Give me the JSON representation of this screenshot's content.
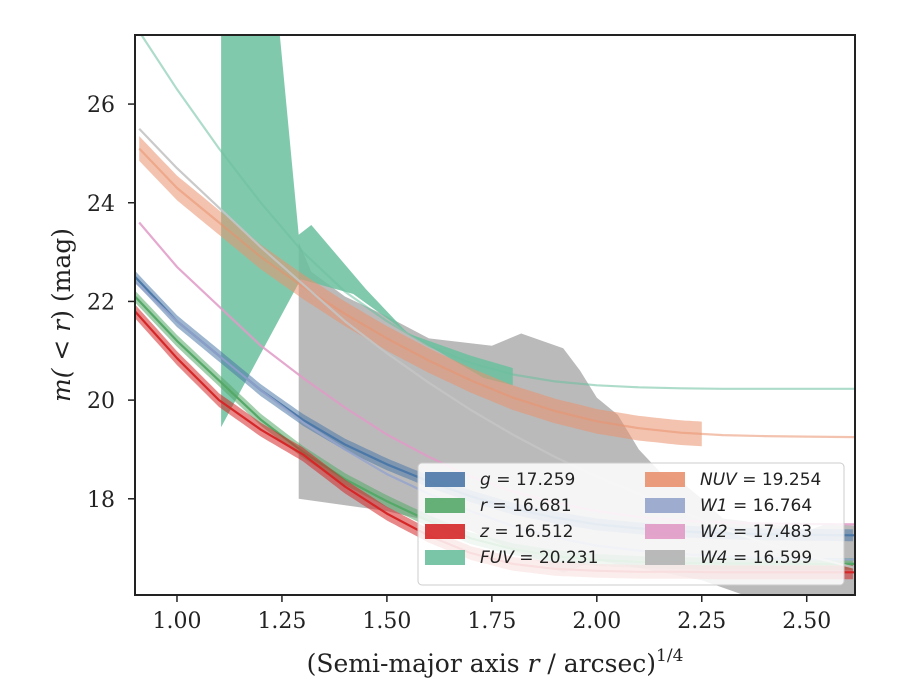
{
  "chart_data": {
    "type": "line",
    "xlabel": "(Semi-major axis r / arcsec)",
    "xlabel_parts": {
      "pre": "(Semi-major axis ",
      "var": "r",
      "post": " / arcsec)",
      "sup": "1/4"
    },
    "ylabel_parts": {
      "pre": "m(",
      "mid": " < ",
      "var": "r",
      "post": ") (mag)"
    },
    "xlim": [
      0.9,
      2.615
    ],
    "ylim": [
      27.4,
      16.05
    ],
    "y_inverted": true,
    "xticks": [
      1.0,
      1.25,
      1.5,
      1.75,
      2.0,
      2.25,
      2.5
    ],
    "xtick_labels": [
      "1.00",
      "1.25",
      "1.50",
      "1.75",
      "2.00",
      "2.25",
      "2.50"
    ],
    "yticks": [
      18,
      20,
      22,
      24,
      26
    ],
    "ytick_labels": [
      "18",
      "20",
      "22",
      "24",
      "26"
    ],
    "grid": false,
    "legend": {
      "placement": "lower-right",
      "columns": 2,
      "entries": [
        {
          "var": "g",
          "eq": " = 17.259",
          "color": "#4c78a8",
          "italic_var": true
        },
        {
          "var": "r",
          "eq": " = 16.681",
          "color": "#55a868",
          "italic_var": true
        },
        {
          "var": "z",
          "eq": " = 16.512",
          "color": "#d62728",
          "italic_var": true
        },
        {
          "var": "FUV",
          "eq": " = 20.231",
          "color": "#6bbf9f",
          "italic_var": true
        },
        {
          "var": "NUV",
          "eq": " = 19.254",
          "color": "#e9916e",
          "italic_var": true
        },
        {
          "var": "W1",
          "eq": " = 16.764",
          "color": "#95a4cc",
          "italic_var": true
        },
        {
          "var": "W2",
          "eq": " = 17.483",
          "color": "#e19ac7",
          "italic_var": true
        },
        {
          "var": "W4",
          "eq": " = 16.599",
          "color": "#b3b3b3",
          "italic_var": true
        }
      ]
    },
    "series": [
      {
        "name": "g",
        "color": "#4c78a8",
        "line_opacity": 1,
        "x": [
          0.9,
          1.0,
          1.1,
          1.2,
          1.3,
          1.4,
          1.5,
          1.6,
          1.7,
          1.8,
          1.9,
          2.0,
          2.1,
          2.2,
          2.3,
          2.4,
          2.5,
          2.615
        ],
        "y": [
          22.5,
          21.6,
          20.9,
          20.2,
          19.6,
          19.1,
          18.7,
          18.35,
          18.05,
          17.8,
          17.62,
          17.48,
          17.4,
          17.34,
          17.3,
          17.28,
          17.27,
          17.26
        ],
        "band_halfwidth": 0.12,
        "band_until": 2.615
      },
      {
        "name": "r",
        "color": "#55a868",
        "line_opacity": 1,
        "x": [
          0.9,
          1.0,
          1.1,
          1.2,
          1.3,
          1.4,
          1.5,
          1.6,
          1.7,
          1.8,
          1.9,
          2.0,
          2.1,
          2.2,
          2.3,
          2.4,
          2.5,
          2.615
        ],
        "y": [
          22.1,
          21.2,
          20.4,
          19.6,
          18.95,
          18.4,
          17.95,
          17.55,
          17.2,
          16.98,
          16.84,
          16.76,
          16.72,
          16.7,
          16.69,
          16.69,
          16.68,
          16.68
        ],
        "band_halfwidth": 0.12,
        "band_until": 2.615
      },
      {
        "name": "z",
        "color": "#d62728",
        "line_opacity": 1,
        "x": [
          0.9,
          1.0,
          1.1,
          1.2,
          1.3,
          1.4,
          1.5,
          1.6,
          1.7,
          1.8,
          1.9,
          2.0,
          2.1,
          2.2,
          2.3,
          2.4,
          2.5,
          2.615
        ],
        "y": [
          21.8,
          20.85,
          20.0,
          19.4,
          18.9,
          18.25,
          17.7,
          17.25,
          16.9,
          16.68,
          16.58,
          16.54,
          16.52,
          16.52,
          16.51,
          16.51,
          16.51,
          16.51
        ],
        "band_halfwidth": 0.14,
        "band_until": 2.615
      },
      {
        "name": "FUV",
        "color": "#6bbf9f",
        "line_opacity": 0.55,
        "x": [
          0.9,
          1.0,
          1.1,
          1.2,
          1.3,
          1.4,
          1.5,
          1.6,
          1.7,
          1.8,
          1.9,
          2.0,
          2.1,
          2.2,
          2.3,
          2.4,
          2.5,
          2.615
        ],
        "y": [
          27.6,
          26.3,
          25.1,
          24.0,
          23.0,
          22.2,
          21.6,
          21.1,
          20.75,
          20.52,
          20.38,
          20.3,
          20.26,
          20.24,
          20.23,
          20.23,
          20.23,
          20.23
        ],
        "band_halfwidth": 0,
        "band_until": 0
      },
      {
        "name": "NUV",
        "color": "#e9916e",
        "line_opacity": 0.55,
        "x": [
          0.91,
          1.0,
          1.1,
          1.2,
          1.3,
          1.4,
          1.5,
          1.6,
          1.7,
          1.8,
          1.9,
          2.0,
          2.1,
          2.2,
          2.3,
          2.4,
          2.5,
          2.615
        ],
        "y": [
          25.1,
          24.3,
          23.6,
          22.9,
          22.3,
          21.75,
          21.25,
          20.8,
          20.4,
          20.05,
          19.78,
          19.57,
          19.43,
          19.34,
          19.29,
          19.27,
          19.26,
          19.25
        ],
        "band_halfwidth": 0.25,
        "band_until": 2.25
      },
      {
        "name": "W1",
        "color": "#95a4cc",
        "line_opacity": 0.85,
        "x": [
          0.9,
          1.0,
          1.1,
          1.2,
          1.3,
          1.4,
          1.5,
          1.6,
          1.7,
          1.8,
          1.9,
          2.0,
          2.1,
          2.2,
          2.3,
          2.4,
          2.5,
          2.615
        ],
        "y": [
          22.4,
          21.6,
          20.9,
          20.2,
          19.55,
          19.0,
          18.5,
          18.1,
          17.75,
          17.45,
          17.22,
          17.05,
          16.95,
          16.88,
          16.83,
          16.8,
          16.78,
          16.77
        ],
        "band_halfwidth": 0,
        "band_until": 0
      },
      {
        "name": "W2",
        "color": "#e19ac7",
        "line_opacity": 0.85,
        "x": [
          0.91,
          1.0,
          1.1,
          1.2,
          1.3,
          1.4,
          1.5,
          1.6,
          1.7,
          1.8,
          1.9,
          2.0,
          2.1,
          2.2,
          2.3,
          2.4,
          2.5,
          2.615
        ],
        "y": [
          23.6,
          22.7,
          21.9,
          21.1,
          20.45,
          19.85,
          19.3,
          18.85,
          18.45,
          18.15,
          17.92,
          17.75,
          17.63,
          17.56,
          17.52,
          17.5,
          17.49,
          17.48
        ],
        "band_halfwidth": 0,
        "band_until": 0
      },
      {
        "name": "W4",
        "color": "#c4c4c4",
        "line_opacity": 0.9,
        "x": [
          0.91,
          1.0,
          1.1,
          1.2,
          1.3,
          1.4,
          1.5,
          1.6,
          1.7,
          1.8,
          1.9,
          2.0,
          2.1,
          2.2,
          2.3,
          2.4,
          2.5,
          2.615
        ],
        "y": [
          25.5,
          24.7,
          23.9,
          23.1,
          22.35,
          21.6,
          20.95,
          20.35,
          19.8,
          19.3,
          18.85,
          18.45,
          18.1,
          17.75,
          17.4,
          17.1,
          16.85,
          16.6
        ],
        "band_halfwidth": 0,
        "band_until": 0
      }
    ],
    "fills": [
      {
        "name": "W4 uncertainty",
        "color": "#b3b3b3",
        "opacity": 0.9,
        "points": [
          [
            1.29,
            18.0
          ],
          [
            1.5,
            17.75
          ],
          [
            1.7,
            17.35
          ],
          [
            1.92,
            16.5
          ],
          [
            2.0,
            16.75
          ],
          [
            2.1,
            16.6
          ],
          [
            2.25,
            16.35
          ],
          [
            2.35,
            16.05
          ],
          [
            2.615,
            16.05
          ],
          [
            2.615,
            17.45
          ],
          [
            2.55,
            17.5
          ],
          [
            2.5,
            17.35
          ],
          [
            2.45,
            17.45
          ],
          [
            2.38,
            17.5
          ],
          [
            2.35,
            17.55
          ],
          [
            2.3,
            17.6
          ],
          [
            2.25,
            18.0
          ],
          [
            2.2,
            18.35
          ],
          [
            2.15,
            18.55
          ],
          [
            2.1,
            19.0
          ],
          [
            2.05,
            19.7
          ],
          [
            2.0,
            20.05
          ],
          [
            1.96,
            20.6
          ],
          [
            1.92,
            21.05
          ],
          [
            1.82,
            21.35
          ],
          [
            1.75,
            21.1
          ],
          [
            1.6,
            21.25
          ],
          [
            1.5,
            21.7
          ],
          [
            1.4,
            22.1
          ],
          [
            1.32,
            22.6
          ],
          [
            1.29,
            23.2
          ]
        ]
      },
      {
        "name": "FUV uncertainty",
        "color": "#6bbf9f",
        "opacity": 0.85,
        "points": [
          [
            1.105,
            19.45
          ],
          [
            1.295,
            22.45
          ],
          [
            1.42,
            22.15
          ],
          [
            1.55,
            21.35
          ],
          [
            1.65,
            20.85
          ],
          [
            1.73,
            20.45
          ],
          [
            1.8,
            20.3
          ],
          [
            1.8,
            20.65
          ],
          [
            1.7,
            20.9
          ],
          [
            1.6,
            21.2
          ],
          [
            1.55,
            21.35
          ],
          [
            1.45,
            22.25
          ],
          [
            1.32,
            23.55
          ],
          [
            1.29,
            23.35
          ],
          [
            1.245,
            27.4
          ],
          [
            1.105,
            27.4
          ]
        ]
      }
    ]
  }
}
